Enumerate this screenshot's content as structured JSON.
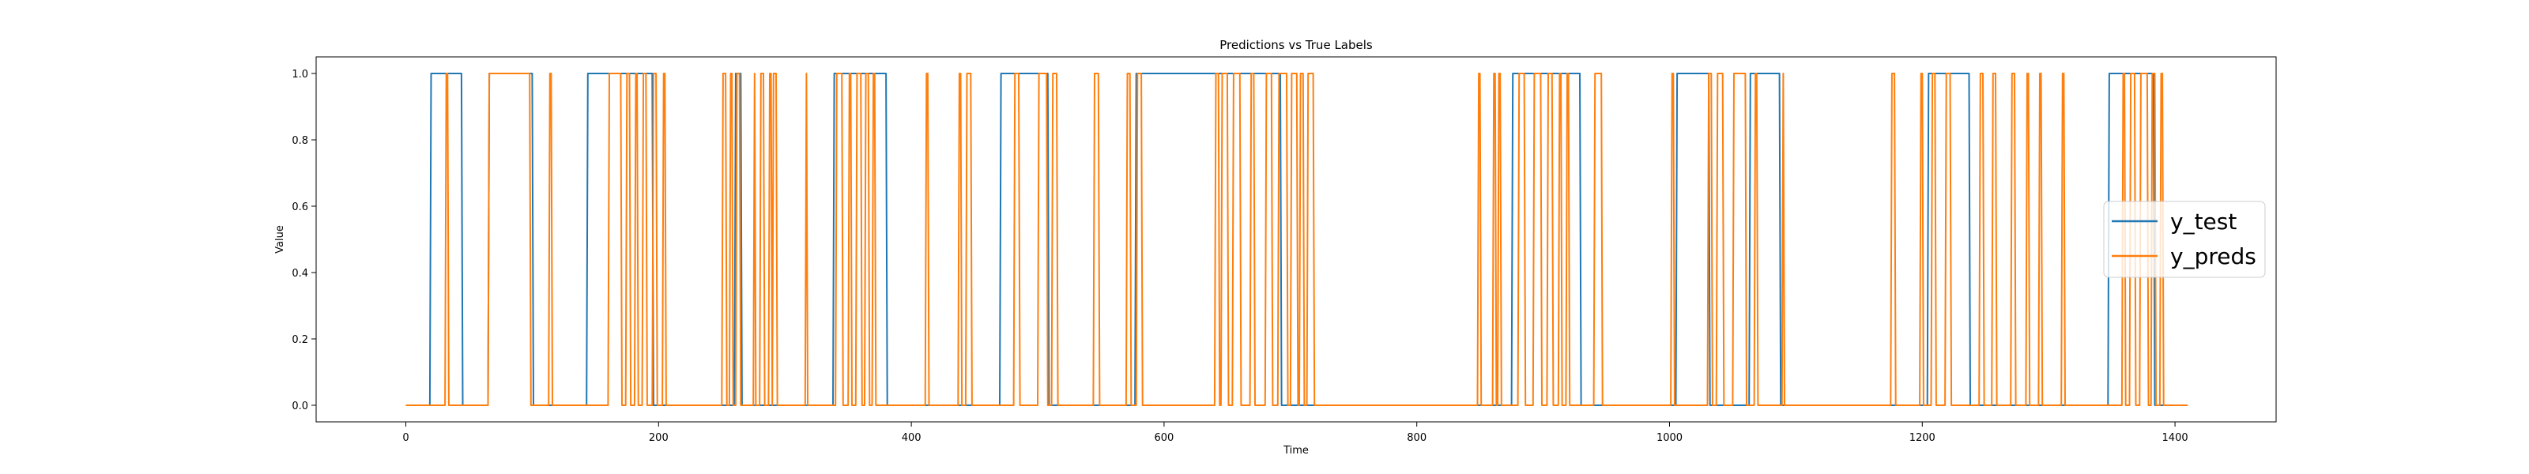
{
  "chart_data": {
    "type": "line",
    "title": "Predictions vs True Labels",
    "xlabel": "Time",
    "ylabel": "Value",
    "xlim": [
      -71,
      1480
    ],
    "ylim": [
      -0.05,
      1.05
    ],
    "xticks": [
      0,
      200,
      400,
      600,
      800,
      1000,
      1200,
      1400
    ],
    "yticks": [
      0.0,
      0.2,
      0.4,
      0.6,
      0.8,
      1.0
    ],
    "x_tick_labels": [
      "0",
      "200",
      "400",
      "600",
      "800",
      "1000",
      "1200",
      "1400"
    ],
    "y_tick_labels": [
      "0.0",
      "0.2",
      "0.4",
      "0.6",
      "0.8",
      "1.0"
    ],
    "grid": false,
    "legend_position": "center-right",
    "x_start": 0,
    "x_end": 1410,
    "series": [
      {
        "name": "y_test",
        "color": "#1f77b4",
        "start_value": 0,
        "transitions": [
          19,
          44,
          65,
          100,
          143,
          195,
          260,
          265,
          338,
          380,
          470,
          508,
          577,
          692,
          875,
          929,
          1005,
          1031,
          1063,
          1087,
          1204,
          1237,
          1347,
          1383
        ]
      },
      {
        "name": "y_preds",
        "color": "#ff7f0e",
        "start_value": 0,
        "transitions": [
          31,
          33,
          65,
          98,
          113,
          115,
          160,
          170,
          174,
          177,
          181,
          183,
          187,
          190,
          195,
          198,
          203,
          205,
          250,
          253,
          256,
          258,
          261,
          264,
          275,
          276,
          280,
          283,
          287,
          289,
          290,
          293,
          316,
          317,
          340,
          345,
          350,
          352,
          356,
          360,
          363,
          366,
          369,
          371,
          411,
          413,
          437,
          439,
          443,
          447,
          481,
          485,
          500,
          507,
          511,
          515,
          544,
          548,
          570,
          573,
          578,
          582,
          640,
          643,
          645,
          650,
          654,
          660,
          668,
          671,
          680,
          685,
          690,
          697,
          700,
          705,
          707,
          710,
          713,
          718,
          848,
          850,
          860,
          862,
          864,
          866,
          880,
          885,
          892,
          898,
          903,
          907,
          912,
          914,
          918,
          920,
          940,
          946,
          1001,
          1003,
          1030,
          1033,
          1037,
          1042,
          1050,
          1060,
          1067,
          1069,
          1089,
          1090,
          1175,
          1178,
          1198,
          1200,
          1207,
          1210,
          1218,
          1222,
          1245,
          1248,
          1255,
          1258,
          1270,
          1273,
          1282,
          1284,
          1292,
          1294,
          1310,
          1312,
          1358,
          1360,
          1364,
          1368,
          1372,
          1378,
          1381,
          1384,
          1388,
          1390
        ]
      }
    ]
  }
}
